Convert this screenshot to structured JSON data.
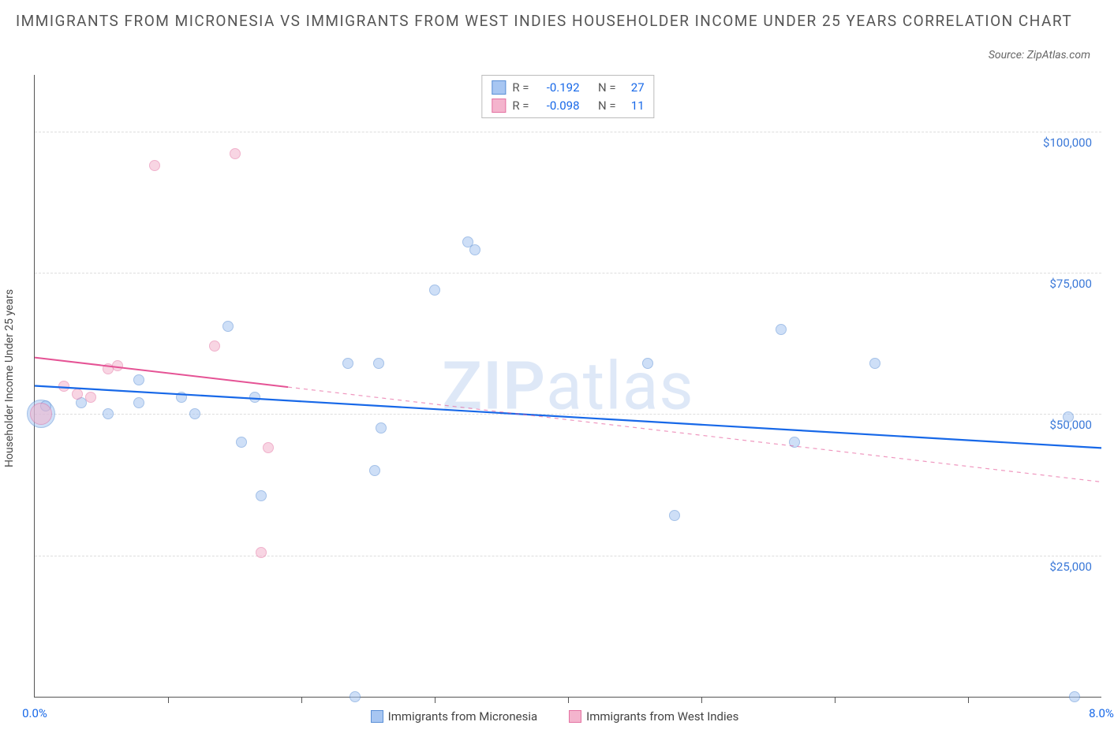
{
  "title": "IMMIGRANTS FROM MICRONESIA VS IMMIGRANTS FROM WEST INDIES HOUSEHOLDER INCOME UNDER 25 YEARS CORRELATION CHART",
  "source_label": "Source: ZipAtlas.com",
  "y_axis_label": "Householder Income Under 25 years",
  "watermark_bold": "ZIP",
  "watermark_light": "atlas",
  "chart": {
    "type": "scatter",
    "background_color": "#ffffff",
    "grid_color": "#dddddd",
    "axis_color": "#555555",
    "x": {
      "min": 0,
      "max": 8,
      "label_min": "0.0%",
      "label_max": "8.0%",
      "label_color": "#1768e8",
      "ticks": [
        1,
        2,
        3,
        4,
        5,
        6,
        7
      ]
    },
    "y": {
      "min": 0,
      "max": 110000,
      "grid": [
        25000,
        50000,
        75000,
        100000
      ],
      "labels": {
        "25000": "$25,000",
        "50000": "$50,000",
        "75000": "$75,000",
        "100000": "$100,000"
      },
      "label_color": "#3a78d8"
    },
    "series": [
      {
        "id": "micronesia",
        "name": "Immigrants from Micronesia",
        "fill": "#a7c6f2",
        "stroke": "#5a8fd6",
        "fill_opacity": 0.55,
        "r_label": "R =",
        "r_value": "-0.192",
        "n_label": "N =",
        "n_value": "27",
        "trend": {
          "y_at_xmin": 55000,
          "y_at_xmax": 44000,
          "solid_until_x": 8,
          "color": "#1768e8",
          "width": 2.2
        },
        "points": [
          {
            "x": 0.05,
            "y": 50000,
            "r": 18
          },
          {
            "x": 0.08,
            "y": 51500,
            "r": 7
          },
          {
            "x": 0.35,
            "y": 52000,
            "r": 7
          },
          {
            "x": 0.55,
            "y": 50000,
            "r": 7
          },
          {
            "x": 0.78,
            "y": 56000,
            "r": 7
          },
          {
            "x": 0.78,
            "y": 52000,
            "r": 7
          },
          {
            "x": 1.1,
            "y": 53000,
            "r": 7
          },
          {
            "x": 1.2,
            "y": 50000,
            "r": 7
          },
          {
            "x": 1.45,
            "y": 65500,
            "r": 7
          },
          {
            "x": 1.55,
            "y": 45000,
            "r": 7
          },
          {
            "x": 1.65,
            "y": 53000,
            "r": 7
          },
          {
            "x": 1.7,
            "y": 35500,
            "r": 7
          },
          {
            "x": 2.35,
            "y": 59000,
            "r": 7
          },
          {
            "x": 2.55,
            "y": 40000,
            "r": 7
          },
          {
            "x": 2.58,
            "y": 59000,
            "r": 7
          },
          {
            "x": 2.6,
            "y": 47500,
            "r": 7
          },
          {
            "x": 2.4,
            "y": 0,
            "r": 7
          },
          {
            "x": 3.25,
            "y": 80500,
            "r": 7
          },
          {
            "x": 3.3,
            "y": 79000,
            "r": 7
          },
          {
            "x": 3.0,
            "y": 72000,
            "r": 7
          },
          {
            "x": 4.6,
            "y": 59000,
            "r": 7
          },
          {
            "x": 4.8,
            "y": 32000,
            "r": 7
          },
          {
            "x": 5.6,
            "y": 65000,
            "r": 7
          },
          {
            "x": 5.7,
            "y": 45000,
            "r": 7
          },
          {
            "x": 6.3,
            "y": 59000,
            "r": 7
          },
          {
            "x": 7.75,
            "y": 49500,
            "r": 7
          },
          {
            "x": 7.8,
            "y": 0,
            "r": 7
          }
        ]
      },
      {
        "id": "west_indies",
        "name": "Immigrants from West Indies",
        "fill": "#f4b4cd",
        "stroke": "#e472a2",
        "fill_opacity": 0.55,
        "r_label": "R =",
        "r_value": "-0.098",
        "n_label": "N =",
        "n_value": "11",
        "trend": {
          "y_at_xmin": 60000,
          "y_at_xmax": 38000,
          "solid_until_x": 1.9,
          "color": "#e55395",
          "width": 2
        },
        "points": [
          {
            "x": 0.05,
            "y": 50000,
            "r": 14
          },
          {
            "x": 0.22,
            "y": 55000,
            "r": 7
          },
          {
            "x": 0.32,
            "y": 53500,
            "r": 7
          },
          {
            "x": 0.42,
            "y": 53000,
            "r": 7
          },
          {
            "x": 0.55,
            "y": 58000,
            "r": 7
          },
          {
            "x": 0.62,
            "y": 58500,
            "r": 7
          },
          {
            "x": 0.9,
            "y": 94000,
            "r": 7
          },
          {
            "x": 1.35,
            "y": 62000,
            "r": 7
          },
          {
            "x": 1.5,
            "y": 96000,
            "r": 7
          },
          {
            "x": 1.75,
            "y": 44000,
            "r": 7
          },
          {
            "x": 1.7,
            "y": 25500,
            "r": 7
          }
        ]
      }
    ]
  },
  "bottom_legend": [
    {
      "label": "Immigrants from Micronesia",
      "fill": "#a7c6f2",
      "stroke": "#5a8fd6"
    },
    {
      "label": "Immigrants from West Indies",
      "fill": "#f4b4cd",
      "stroke": "#e472a2"
    }
  ]
}
